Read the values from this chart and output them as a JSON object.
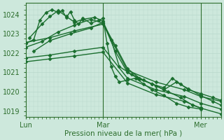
{
  "xlabel": "Pression niveau de la mer( hPa )",
  "ylim": [
    1018.7,
    1024.6
  ],
  "xlim": [
    0,
    96
  ],
  "yticks": [
    1019,
    1020,
    1021,
    1022,
    1023,
    1024
  ],
  "xtick_positions": [
    0,
    38,
    86
  ],
  "xtick_labels": [
    "Lun",
    "Mar",
    "Mer"
  ],
  "bg_color": "#cde8dc",
  "grid_color": "#b8d8cb",
  "line_color": "#1a6e2e",
  "vline_positions": [
    38,
    86
  ],
  "vline_color": "#2d6e2d",
  "series": [
    {
      "x": [
        0,
        4,
        7,
        10,
        13,
        16,
        18,
        20,
        22,
        24,
        26,
        28,
        32,
        36,
        38,
        40,
        42,
        44,
        46,
        50,
        54,
        58,
        62,
        68,
        74,
        80,
        86
      ],
      "y": [
        1022.5,
        1022.7,
        1023.7,
        1024.1,
        1024.25,
        1024.1,
        1024.2,
        1023.85,
        1024.15,
        1023.7,
        1023.5,
        1023.8,
        1023.55,
        1023.7,
        1023.8,
        1022.5,
        1021.3,
        1020.8,
        1020.5,
        1020.6,
        1020.7,
        1020.4,
        1020.1,
        1019.8,
        1019.4,
        1019.2,
        1019.1
      ],
      "marker": "D",
      "markersize": 2.5,
      "lw": 1.0
    },
    {
      "x": [
        2,
        8,
        12,
        16,
        20,
        24,
        28,
        34,
        38,
        42,
        46,
        52,
        58,
        64,
        70,
        76,
        82,
        86
      ],
      "y": [
        1022.8,
        1023.5,
        1023.9,
        1024.2,
        1023.9,
        1023.6,
        1023.75,
        1023.85,
        1023.65,
        1022.7,
        1021.3,
        1020.9,
        1020.6,
        1020.3,
        1020.0,
        1019.7,
        1019.3,
        1019.15
      ],
      "marker": "D",
      "markersize": 2.5,
      "lw": 1.0
    },
    {
      "x": [
        0,
        12,
        24,
        38,
        50,
        64,
        78,
        86,
        96
      ],
      "y": [
        1022.55,
        1022.8,
        1023.15,
        1023.5,
        1021.1,
        1020.5,
        1020.1,
        1019.75,
        1019.5
      ],
      "marker": "D",
      "markersize": 2.5,
      "lw": 1.0
    },
    {
      "x": [
        0,
        12,
        24,
        38,
        50,
        64,
        78,
        86,
        96
      ],
      "y": [
        1021.75,
        1021.9,
        1022.1,
        1022.3,
        1020.7,
        1020.1,
        1019.75,
        1019.4,
        1019.1
      ],
      "marker": "D",
      "markersize": 2.5,
      "lw": 1.0
    },
    {
      "x": [
        0,
        12,
        24,
        38,
        50,
        64,
        78,
        86,
        96
      ],
      "y": [
        1021.55,
        1021.7,
        1021.85,
        1022.05,
        1020.45,
        1019.85,
        1019.5,
        1019.15,
        1018.85
      ],
      "marker": "D",
      "markersize": 2.5,
      "lw": 1.0
    },
    {
      "x": [
        4,
        12,
        22,
        32,
        38,
        44,
        50,
        56,
        62,
        68,
        72,
        76,
        80,
        86,
        92,
        96
      ],
      "y": [
        1022.1,
        1022.65,
        1023.0,
        1023.3,
        1023.6,
        1022.1,
        1021.0,
        1020.65,
        1020.4,
        1020.2,
        1020.7,
        1020.4,
        1020.1,
        1019.9,
        1019.7,
        1019.55
      ],
      "marker": "D",
      "markersize": 2.5,
      "lw": 1.0
    },
    {
      "x": [
        0,
        8,
        16,
        24,
        32,
        38,
        44,
        50,
        56,
        62,
        68,
        74,
        80,
        86,
        92,
        96
      ],
      "y": [
        1022.3,
        1022.6,
        1023.1,
        1023.45,
        1023.75,
        1023.55,
        1022.4,
        1021.2,
        1020.7,
        1020.4,
        1020.1,
        1020.5,
        1020.15,
        1019.8,
        1019.5,
        1019.3
      ],
      "marker": "D",
      "markersize": 2.5,
      "lw": 1.0
    }
  ]
}
